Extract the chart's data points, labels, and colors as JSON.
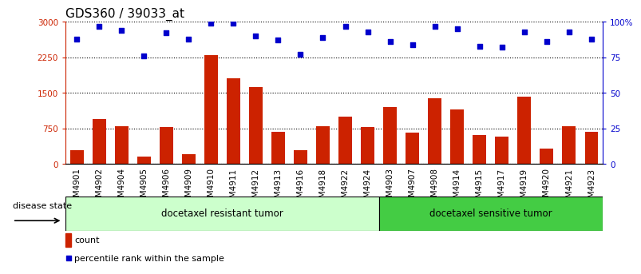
{
  "title": "GDS360 / 39033_at",
  "samples": [
    "GSM4901",
    "GSM4902",
    "GSM4904",
    "GSM4905",
    "GSM4906",
    "GSM4909",
    "GSM4910",
    "GSM4911",
    "GSM4912",
    "GSM4913",
    "GSM4916",
    "GSM4918",
    "GSM4922",
    "GSM4924",
    "GSM4903",
    "GSM4907",
    "GSM4908",
    "GSM4914",
    "GSM4915",
    "GSM4917",
    "GSM4919",
    "GSM4920",
    "GSM4921",
    "GSM4923"
  ],
  "counts": [
    300,
    950,
    800,
    150,
    780,
    200,
    2300,
    1800,
    1620,
    680,
    300,
    800,
    1000,
    780,
    1200,
    660,
    1380,
    1150,
    620,
    580,
    1420,
    320,
    800,
    680
  ],
  "percentile_ranks": [
    88,
    97,
    94,
    76,
    92,
    88,
    99,
    99,
    90,
    87,
    77,
    89,
    97,
    93,
    86,
    84,
    97,
    95,
    83,
    82,
    93,
    86,
    93,
    88
  ],
  "bar_color": "#cc2200",
  "dot_color": "#0000cc",
  "ylim_left": [
    0,
    3000
  ],
  "ylim_right": [
    0,
    100
  ],
  "yticks_left": [
    0,
    750,
    1500,
    2250,
    3000
  ],
  "ytick_labels_left": [
    "0",
    "750",
    "1500",
    "2250",
    "3000"
  ],
  "yticks_right": [
    0,
    25,
    50,
    75,
    100
  ],
  "ytick_labels_right": [
    "0",
    "25",
    "50",
    "75",
    "100%"
  ],
  "n_resistant": 14,
  "n_sensitive": 10,
  "group1_label": "docetaxel resistant tumor",
  "group2_label": "docetaxel sensitive tumor",
  "disease_state_label": "disease state",
  "legend_bar_label": "count",
  "legend_dot_label": "percentile rank within the sample",
  "bg_color": "#ffffff",
  "group1_fill": "#ccffcc",
  "group2_fill": "#44cc44",
  "title_fontsize": 11,
  "tick_fontsize": 7.5
}
